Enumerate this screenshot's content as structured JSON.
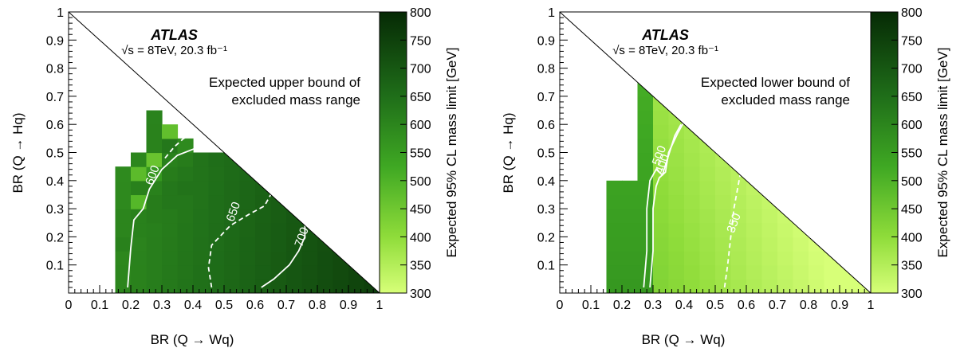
{
  "chart_data": [
    {
      "type": "heatmap",
      "experiment_label": "ATLAS",
      "energy_lumi": "√s = 8TeV, 20.3 fb⁻¹",
      "annotation_lines": [
        "Expected upper bound of",
        "excluded mass range"
      ],
      "xlabel": "BR (Q → Wq)",
      "ylabel": "BR (Q → Hq)",
      "zlabel": "Expected 95% CL mass limit [GeV]",
      "xlim": [
        0,
        1
      ],
      "ylim": [
        0,
        1
      ],
      "zlim": [
        300,
        800
      ],
      "x_ticks": [
        "0",
        "0.1",
        "0.2",
        "0.3",
        "0.4",
        "0.5",
        "0.6",
        "0.7",
        "0.8",
        "0.9",
        "1"
      ],
      "y_ticks": [
        "0.1",
        "0.2",
        "0.3",
        "0.4",
        "0.5",
        "0.6",
        "0.7",
        "0.8",
        "0.9",
        "1"
      ],
      "z_ticks": [
        "300",
        "350",
        "400",
        "450",
        "500",
        "550",
        "600",
        "650",
        "700",
        "750",
        "800"
      ],
      "contours": [
        {
          "label": "600",
          "style": "solid",
          "points": [
            [
              0.19,
              0.02
            ],
            [
              0.2,
              0.16
            ],
            [
              0.21,
              0.26
            ],
            [
              0.24,
              0.3
            ],
            [
              0.26,
              0.37
            ],
            [
              0.3,
              0.44
            ],
            [
              0.35,
              0.49
            ],
            [
              0.42,
              0.52
            ],
            [
              0.49,
              0.51
            ]
          ]
        },
        {
          "label": "650",
          "style": "dashed",
          "points": [
            [
              0.46,
              0.02
            ],
            [
              0.45,
              0.09
            ],
            [
              0.46,
              0.17
            ],
            [
              0.52,
              0.24
            ],
            [
              0.58,
              0.28
            ],
            [
              0.63,
              0.31
            ],
            [
              0.65,
              0.35
            ]
          ]
        },
        {
          "label": "650",
          "style": "dashed",
          "points": [
            [
              0.31,
              0.48
            ],
            [
              0.34,
              0.52
            ],
            [
              0.37,
              0.55
            ],
            [
              0.42,
              0.57
            ],
            [
              0.45,
              0.55
            ]
          ]
        },
        {
          "label": "700",
          "style": "solid",
          "points": [
            [
              0.62,
              0.02
            ],
            [
              0.66,
              0.05
            ],
            [
              0.71,
              0.1
            ],
            [
              0.74,
              0.15
            ],
            [
              0.76,
              0.2
            ],
            [
              0.76,
              0.24
            ]
          ]
        }
      ],
      "z_values": [
        [
          null,
          null,
          null,
          null,
          null,
          null,
          null,
          null,
          null,
          null,
          null,
          null,
          null,
          null,
          null,
          null,
          null,
          null,
          null,
          null
        ],
        [
          null,
          null,
          null,
          null,
          null,
          null,
          null,
          null,
          null,
          null,
          null,
          null,
          null,
          null,
          null,
          null,
          null,
          null,
          null
        ],
        [
          null,
          null,
          null,
          null,
          null,
          null,
          null,
          null,
          null,
          null,
          null,
          null,
          null,
          null,
          null,
          null,
          null,
          null
        ],
        [
          null,
          null,
          null,
          null,
          null,
          null,
          null,
          null,
          null,
          null,
          null,
          null,
          null,
          null,
          null,
          null,
          null
        ],
        [
          null,
          null,
          null,
          null,
          null,
          null,
          null,
          null,
          null,
          null,
          null,
          null,
          null,
          null,
          null,
          null
        ],
        [
          null,
          null,
          null,
          null,
          null,
          null,
          null,
          null,
          null,
          null,
          null,
          null,
          null,
          null,
          null
        ],
        [
          null,
          null,
          null,
          null,
          null,
          null,
          null,
          null,
          null,
          null,
          null,
          null,
          null,
          null
        ],
        [
          null,
          null,
          null,
          null,
          null,
          null,
          null,
          null,
          null,
          null,
          null,
          null,
          null
        ],
        [
          null,
          null,
          null,
          null,
          null,
          null,
          470,
          null,
          null,
          null,
          null,
          null
        ],
        [
          null,
          null,
          null,
          null,
          null,
          null,
          630,
          590,
          null,
          null,
          null
        ],
        [
          null,
          null,
          null,
          null,
          null,
          460,
          610,
          620,
          640,
          650
        ],
        [
          null,
          null,
          null,
          null,
          480,
          560,
          620,
          630,
          640
        ],
        [
          null,
          null,
          null,
          null,
          610,
          610,
          630,
          640
        ],
        [
          null,
          null,
          null,
          null,
          490,
          620,
          630
        ],
        [
          null,
          null,
          null,
          600,
          610,
          620
        ],
        [
          null,
          null,
          null,
          600,
          610
        ],
        [
          null,
          null,
          null,
          610
        ],
        [
          null,
          null,
          null
        ],
        [
          null,
          null
        ],
        [
          null
        ]
      ],
      "z_values_fill": {
        "x_min": 0.17,
        "y_max_cell": 15,
        "base": 600,
        "slope_x": 150,
        "slope_y": -20
      }
    },
    {
      "type": "heatmap",
      "experiment_label": "ATLAS",
      "energy_lumi": "√s = 8TeV, 20.3 fb⁻¹",
      "annotation_lines": [
        "Expected lower bound of",
        "excluded mass range"
      ],
      "xlabel": "BR (Q → Wq)",
      "ylabel": "BR (Q → Hq)",
      "zlabel": "Expected 95% CL mass limit [GeV]",
      "xlim": [
        0,
        1
      ],
      "ylim": [
        0,
        1
      ],
      "zlim": [
        300,
        800
      ],
      "x_ticks": [
        "0",
        "0.1",
        "0.2",
        "0.3",
        "0.4",
        "0.5",
        "0.6",
        "0.7",
        "0.8",
        "0.9",
        "1"
      ],
      "y_ticks": [
        "0.1",
        "0.2",
        "0.3",
        "0.4",
        "0.5",
        "0.6",
        "0.7",
        "0.8",
        "0.9",
        "1"
      ],
      "z_ticks": [
        "300",
        "350",
        "400",
        "450",
        "500",
        "550",
        "600",
        "650",
        "700",
        "750",
        "800"
      ],
      "contours": [
        {
          "label": "500",
          "style": "solid",
          "points": [
            [
              0.27,
              0.02
            ],
            [
              0.28,
              0.15
            ],
            [
              0.28,
              0.3
            ],
            [
              0.29,
              0.4
            ],
            [
              0.31,
              0.44
            ],
            [
              0.33,
              0.42
            ],
            [
              0.35,
              0.49
            ],
            [
              0.37,
              0.56
            ],
            [
              0.39,
              0.6
            ]
          ]
        },
        {
          "label": "400",
          "style": "solid",
          "points": [
            [
              0.29,
              0.02
            ],
            [
              0.3,
              0.15
            ],
            [
              0.3,
              0.3
            ],
            [
              0.31,
              0.38
            ],
            [
              0.32,
              0.41
            ],
            [
              0.34,
              0.43
            ],
            [
              0.35,
              0.5
            ],
            [
              0.38,
              0.57
            ],
            [
              0.4,
              0.61
            ]
          ]
        },
        {
          "label": "350",
          "style": "dashed",
          "points": [
            [
              0.53,
              0.02
            ],
            [
              0.54,
              0.1
            ],
            [
              0.55,
              0.2
            ],
            [
              0.56,
              0.3
            ],
            [
              0.58,
              0.42
            ]
          ]
        }
      ],
      "z_values_fill": {
        "x_min": 0.17,
        "base": 450,
        "slope_x": -220,
        "slope_y": -60
      }
    }
  ]
}
